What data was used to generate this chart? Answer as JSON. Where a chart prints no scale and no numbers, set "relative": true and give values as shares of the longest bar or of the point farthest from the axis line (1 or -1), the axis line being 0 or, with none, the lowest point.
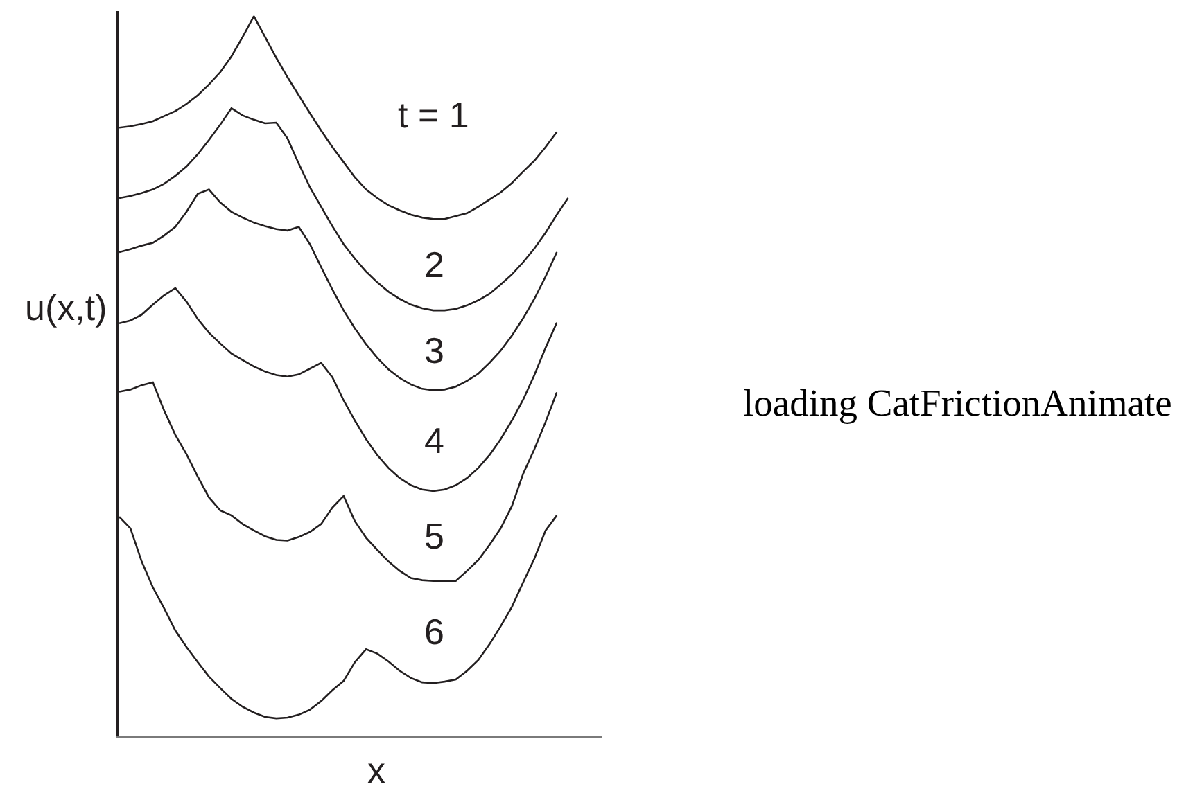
{
  "chart_data": {
    "type": "line",
    "relative": true,
    "xlabel": "x",
    "ylabel": "u(x,t)",
    "annotations": [
      "loading CatFrictionAnimate"
    ],
    "categories": [
      null,
      null,
      null,
      null,
      null,
      null,
      null,
      null,
      null,
      null,
      null,
      null,
      null,
      null,
      null,
      null,
      null,
      null,
      null,
      null,
      null,
      null,
      null,
      null,
      null,
      null,
      null,
      null,
      null,
      null,
      null,
      null,
      null,
      null,
      null,
      null,
      null,
      null,
      null,
      null,
      null,
      null,
      null,
      null
    ],
    "series": [
      {
        "name": "t = 1",
        "color": "#231f20",
        "values": [
          0.845,
          0.847,
          0.85,
          0.854,
          0.861,
          0.868,
          0.878,
          0.89,
          0.905,
          0.922,
          0.944,
          0.971,
          1,
          0.971,
          0.942,
          0.915,
          0.89,
          0.865,
          0.841,
          0.818,
          0.797,
          0.776,
          0.759,
          0.747,
          0.737,
          0.73,
          0.724,
          0.72,
          0.718,
          0.718,
          0.722,
          0.726,
          0.735,
          0.745,
          0.755,
          0.768,
          0.784,
          0.799,
          0.818,
          0.839,
          null,
          null,
          null,
          null
        ]
      },
      {
        "name": "2",
        "color": "#231f20",
        "values": [
          0.747,
          0.75,
          0.754,
          0.759,
          0.767,
          0.778,
          0.791,
          0.808,
          0.828,
          0.849,
          0.872,
          0.862,
          0.856,
          0.851,
          0.852,
          0.83,
          0.795,
          0.762,
          0.735,
          0.708,
          0.683,
          0.663,
          0.645,
          0.63,
          0.617,
          0.607,
          0.599,
          0.594,
          0.591,
          0.591,
          0.593,
          0.598,
          0.605,
          0.614,
          0.627,
          0.641,
          0.658,
          0.677,
          0.699,
          0.724,
          0.747,
          null,
          null,
          null
        ]
      },
      {
        "name": "3",
        "color": "#231f20",
        "values": [
          0.672,
          0.676,
          0.681,
          0.685,
          0.695,
          0.707,
          0.728,
          0.753,
          0.759,
          0.741,
          0.728,
          0.72,
          0.713,
          0.708,
          0.704,
          0.702,
          0.707,
          0.683,
          0.651,
          0.62,
          0.591,
          0.566,
          0.544,
          0.525,
          0.509,
          0.497,
          0.488,
          0.482,
          0.48,
          0.481,
          0.485,
          0.493,
          0.503,
          0.518,
          0.535,
          0.556,
          0.58,
          0.607,
          0.638,
          0.672,
          null,
          null,
          null,
          null
        ]
      },
      {
        "name": "4",
        "color": "#231f20",
        "values": [
          0.573,
          0.577,
          0.585,
          0.599,
          0.612,
          0.622,
          0.603,
          0.579,
          0.56,
          0.545,
          0.531,
          0.522,
          0.513,
          0.506,
          0.501,
          0.499,
          0.502,
          0.51,
          0.518,
          0.498,
          0.466,
          0.438,
          0.412,
          0.39,
          0.372,
          0.358,
          0.348,
          0.342,
          0.34,
          0.342,
          0.348,
          0.358,
          0.372,
          0.39,
          0.412,
          0.438,
          0.467,
          0.501,
          0.539,
          0.574,
          null,
          null,
          null,
          null
        ]
      },
      {
        "name": "5",
        "color": "#231f20",
        "values": [
          0.478,
          0.481,
          0.487,
          0.491,
          0.452,
          0.418,
          0.391,
          0.36,
          0.331,
          0.313,
          0.306,
          0.294,
          0.285,
          0.277,
          0.272,
          0.271,
          0.276,
          0.283,
          0.294,
          0.317,
          0.333,
          0.298,
          0.275,
          0.258,
          0.242,
          0.229,
          0.219,
          0.216,
          0.215,
          0.215,
          0.215,
          0.229,
          0.244,
          0.265,
          0.288,
          0.319,
          0.364,
          0.398,
          0.436,
          0.477,
          null,
          null,
          null,
          null
        ]
      },
      {
        "name": "6",
        "color": "#231f20",
        "values": [
          0.304,
          0.288,
          0.242,
          0.206,
          0.177,
          0.146,
          0.123,
          0.102,
          0.082,
          0.066,
          0.051,
          0.04,
          0.032,
          0.026,
          0.024,
          0.025,
          0.029,
          0.036,
          0.048,
          0.063,
          0.076,
          0.102,
          0.12,
          0.114,
          0.103,
          0.09,
          0.08,
          0.074,
          0.073,
          0.075,
          0.078,
          0.09,
          0.105,
          0.127,
          0.152,
          0.179,
          0.213,
          0.246,
          0.285,
          0.306,
          null,
          null,
          null,
          null
        ]
      }
    ]
  }
}
